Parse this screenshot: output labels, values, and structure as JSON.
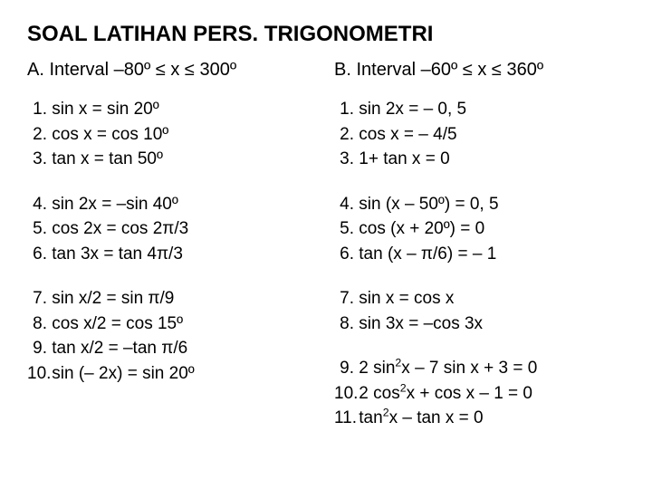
{
  "title": "SOAL LATIHAN PERS. TRIGONOMETRI",
  "colA": {
    "heading_prefix": "A. Interval ",
    "heading_range": "–80º ≤ x ≤ 300º",
    "groups": [
      [
        {
          "n": "1.",
          "t": "sin x  =  sin 20º"
        },
        {
          "n": "2.",
          "t": "cos x  =  cos 10º"
        },
        {
          "n": "3.",
          "t": "tan x  =  tan 50º"
        }
      ],
      [
        {
          "n": "4.",
          "t": "sin 2x  =  –sin 40º"
        },
        {
          "n": "5.",
          "t": "cos 2x  =  cos 2π/3"
        },
        {
          "n": "6.",
          "t": "tan 3x  =  tan 4π/3"
        }
      ],
      [
        {
          "n": "7.",
          "t": "sin x/2  =  sin π/9"
        },
        {
          "n": "8.",
          "t": "cos x/2  =  cos 15º"
        },
        {
          "n": "9.",
          "t": "tan x/2  =  –tan π/6"
        },
        {
          "n": "10.",
          "t": "sin (– 2x)  =  sin 20º"
        }
      ]
    ]
  },
  "colB": {
    "heading_prefix": "B. Interval  ",
    "heading_range": "–60º ≤ x ≤ 360º",
    "groups": [
      [
        {
          "n": "1.",
          "t": "sin 2x  =  – 0, 5"
        },
        {
          "n": "2.",
          "t": "cos x  =  – 4/5"
        },
        {
          "n": "3.",
          "t": "1+ tan x  =  0"
        }
      ],
      [
        {
          "n": "4.",
          "t": "sin (x – 50º)  =  0, 5"
        },
        {
          "n": "5.",
          "t": "cos (x + 20º)  =  0"
        },
        {
          "n": "6.",
          "t": "tan (x – π/6)  =  – 1"
        }
      ],
      [
        {
          "n": "7.",
          "t": "sin x  =  cos x"
        },
        {
          "n": "8.",
          "t": "sin 3x  =  –cos 3x"
        }
      ],
      [
        {
          "n": "9.",
          "t_html": "2 sin<sup>2</sup>x – 7 sin x + 3  =  0"
        },
        {
          "n": "10.",
          "t_html": "2 cos<sup>2</sup>x + cos x – 1  =  0"
        },
        {
          "n": "11.",
          "t_html": "tan<sup>2</sup>x – tan x  =  0"
        }
      ]
    ]
  }
}
